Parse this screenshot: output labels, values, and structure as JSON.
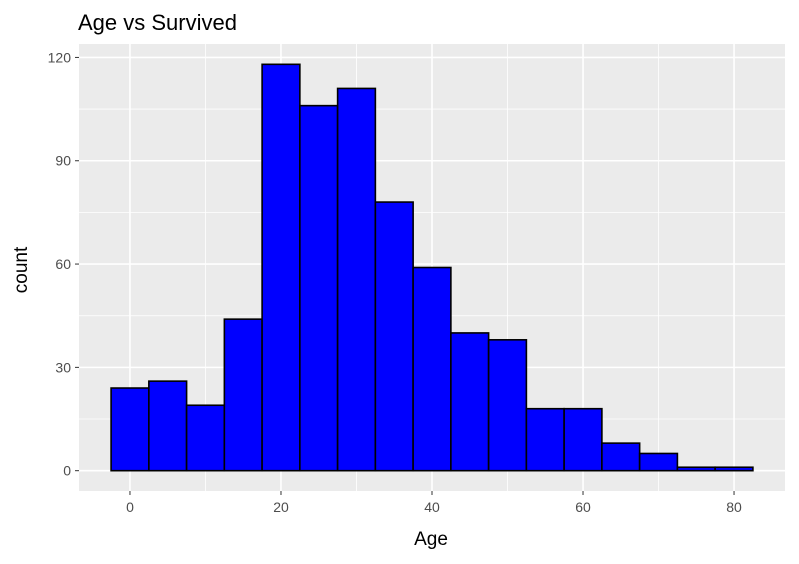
{
  "chart_data": {
    "type": "bar",
    "title": "Age vs Survived",
    "xlabel": "Age",
    "ylabel": "count",
    "bins": [
      {
        "start": -2.5,
        "end": 2.5,
        "count": 24
      },
      {
        "start": 2.5,
        "end": 7.5,
        "count": 26
      },
      {
        "start": 7.5,
        "end": 12.5,
        "count": 19
      },
      {
        "start": 12.5,
        "end": 17.5,
        "count": 44
      },
      {
        "start": 17.5,
        "end": 22.5,
        "count": 118
      },
      {
        "start": 22.5,
        "end": 27.5,
        "count": 106
      },
      {
        "start": 27.5,
        "end": 32.5,
        "count": 111
      },
      {
        "start": 32.5,
        "end": 37.5,
        "count": 78
      },
      {
        "start": 37.5,
        "end": 42.5,
        "count": 59
      },
      {
        "start": 42.5,
        "end": 47.5,
        "count": 40
      },
      {
        "start": 47.5,
        "end": 52.5,
        "count": 38
      },
      {
        "start": 52.5,
        "end": 57.5,
        "count": 18
      },
      {
        "start": 57.5,
        "end": 62.5,
        "count": 18
      },
      {
        "start": 62.5,
        "end": 67.5,
        "count": 8
      },
      {
        "start": 67.5,
        "end": 72.5,
        "count": 5
      },
      {
        "start": 72.5,
        "end": 77.5,
        "count": 1
      },
      {
        "start": 77.5,
        "end": 82.5,
        "count": 1
      }
    ],
    "xlim": [
      -6.75,
      86.75
    ],
    "ylim": [
      -5.9,
      123.9
    ],
    "xticks": [
      0,
      20,
      40,
      60,
      80
    ],
    "yticks": [
      0,
      30,
      60,
      90,
      120
    ],
    "grid": true,
    "colors": {
      "panel": "#ebebeb",
      "grid": "#ffffff",
      "bar_fill": "#0000ff",
      "bar_stroke": "#000000",
      "text": "#000000",
      "tick_text": "#4d4d4d",
      "tick": "#333333"
    }
  }
}
